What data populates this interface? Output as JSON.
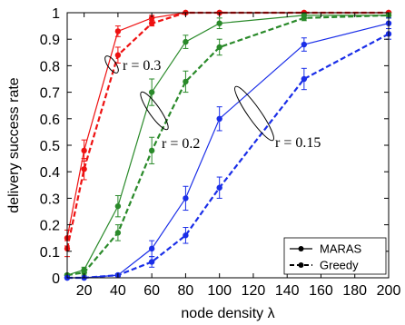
{
  "chart_data": {
    "type": "line",
    "title": "",
    "xlabel": "node density λ",
    "ylabel": "delivery success rate",
    "x_ticks": [
      20,
      40,
      60,
      80,
      100,
      120,
      140,
      160,
      180,
      200
    ],
    "y_ticks": [
      0,
      0.1,
      0.2,
      0.3,
      0.4,
      0.5,
      0.6,
      0.7,
      0.8,
      0.9,
      1
    ],
    "xlim": [
      10,
      200
    ],
    "ylim": [
      0,
      1
    ],
    "grid": false,
    "legend_position": "bottom-right",
    "legend": [
      {
        "label": "MARAS",
        "style": "solid"
      },
      {
        "label": "Greedy",
        "style": "dashed"
      }
    ],
    "x": [
      10,
      20,
      40,
      60,
      80,
      100,
      150,
      200
    ],
    "series": [
      {
        "group": "r = 0.3",
        "method": "MARAS",
        "color": "#ee1111",
        "style": "solid",
        "values": [
          0.15,
          0.48,
          0.93,
          0.98,
          1.0,
          1.0,
          1.0,
          1.0
        ],
        "errors": [
          0.03,
          0.04,
          0.02,
          0.01,
          0.005,
          0.0,
          0.0,
          0.0
        ]
      },
      {
        "group": "r = 0.3",
        "method": "Greedy",
        "color": "#ee1111",
        "style": "dashed",
        "values": [
          0.11,
          0.41,
          0.84,
          0.96,
          1.0,
          1.0,
          1.0,
          1.0
        ],
        "errors": [
          0.03,
          0.04,
          0.03,
          0.01,
          0.005,
          0.0,
          0.0,
          0.0
        ]
      },
      {
        "group": "r = 0.2",
        "method": "MARAS",
        "color": "#2a8a2a",
        "style": "solid",
        "values": [
          0.01,
          0.03,
          0.27,
          0.7,
          0.89,
          0.96,
          0.99,
          0.99
        ],
        "errors": [
          0.005,
          0.01,
          0.04,
          0.05,
          0.025,
          0.02,
          0.01,
          0.01
        ]
      },
      {
        "group": "r = 0.2",
        "method": "Greedy",
        "color": "#2a8a2a",
        "style": "dashed",
        "values": [
          0.01,
          0.02,
          0.17,
          0.48,
          0.74,
          0.87,
          0.98,
          0.99
        ],
        "errors": [
          0.005,
          0.01,
          0.03,
          0.05,
          0.04,
          0.03,
          0.01,
          0.01
        ]
      },
      {
        "group": "r = 0.15",
        "method": "MARAS",
        "color": "#1a2ee8",
        "style": "solid",
        "values": [
          0.0,
          0.0,
          0.01,
          0.11,
          0.3,
          0.6,
          0.88,
          0.96
        ],
        "errors": [
          0.0,
          0.0,
          0.005,
          0.03,
          0.045,
          0.045,
          0.025,
          0.02
        ]
      },
      {
        "group": "r = 0.15",
        "method": "Greedy",
        "color": "#1a2ee8",
        "style": "dashed",
        "values": [
          0.0,
          0.0,
          0.01,
          0.06,
          0.16,
          0.34,
          0.75,
          0.92
        ],
        "errors": [
          0.0,
          0.0,
          0.005,
          0.02,
          0.03,
          0.04,
          0.04,
          0.02
        ]
      }
    ],
    "annotations": [
      {
        "text": "r = 0.3",
        "near_x": 40,
        "near_y": 0.79
      },
      {
        "text": "r = 0.2",
        "near_x": 70,
        "near_y": 0.62
      },
      {
        "text": "r = 0.15",
        "near_x": 125,
        "near_y": 0.55
      }
    ]
  }
}
